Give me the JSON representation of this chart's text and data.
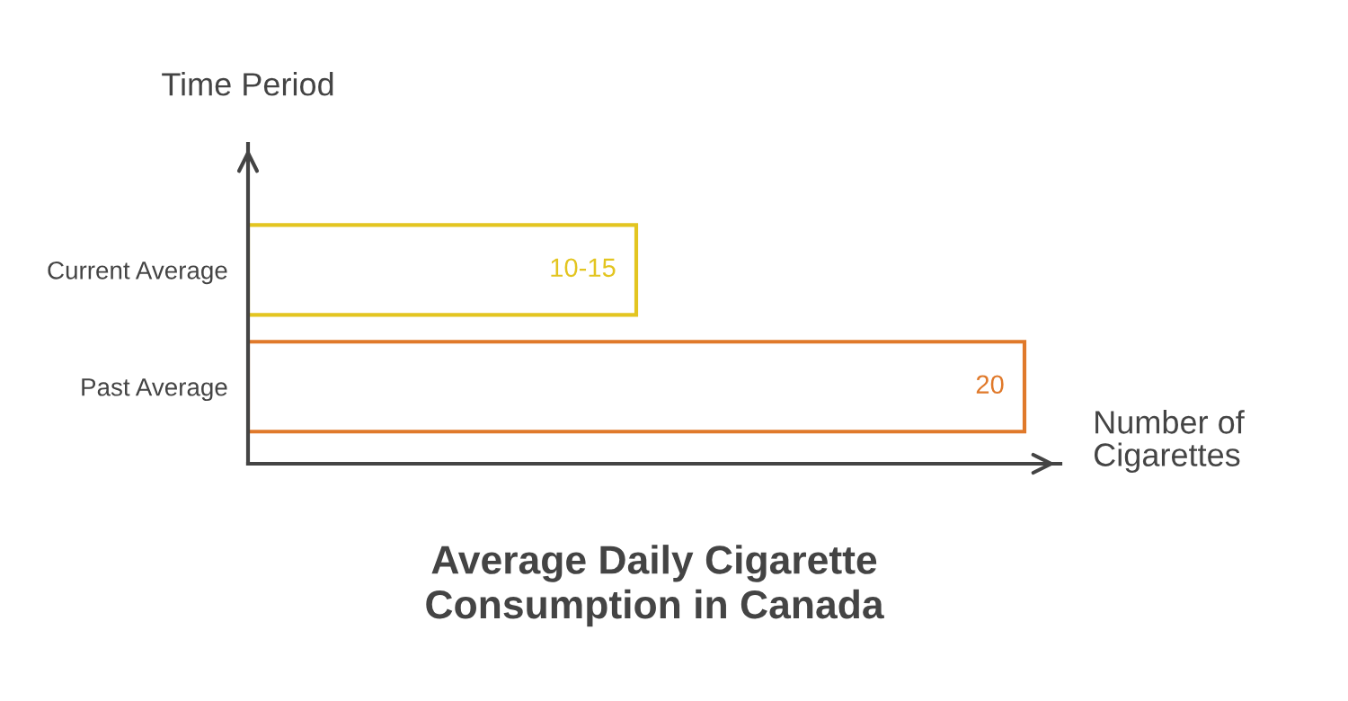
{
  "chart_data": {
    "type": "bar",
    "orientation": "horizontal",
    "title": "Average Daily Cigarette\nConsumption in Canada",
    "xlabel": "Number of\nCigarettes",
    "ylabel": "Time Period",
    "categories": [
      "Current Average",
      "Past Average"
    ],
    "values": [
      10,
      20
    ],
    "value_labels": [
      "10-15",
      "20"
    ],
    "colors": [
      "#e3c520",
      "#e0792a"
    ],
    "grid": false,
    "legend": false
  }
}
